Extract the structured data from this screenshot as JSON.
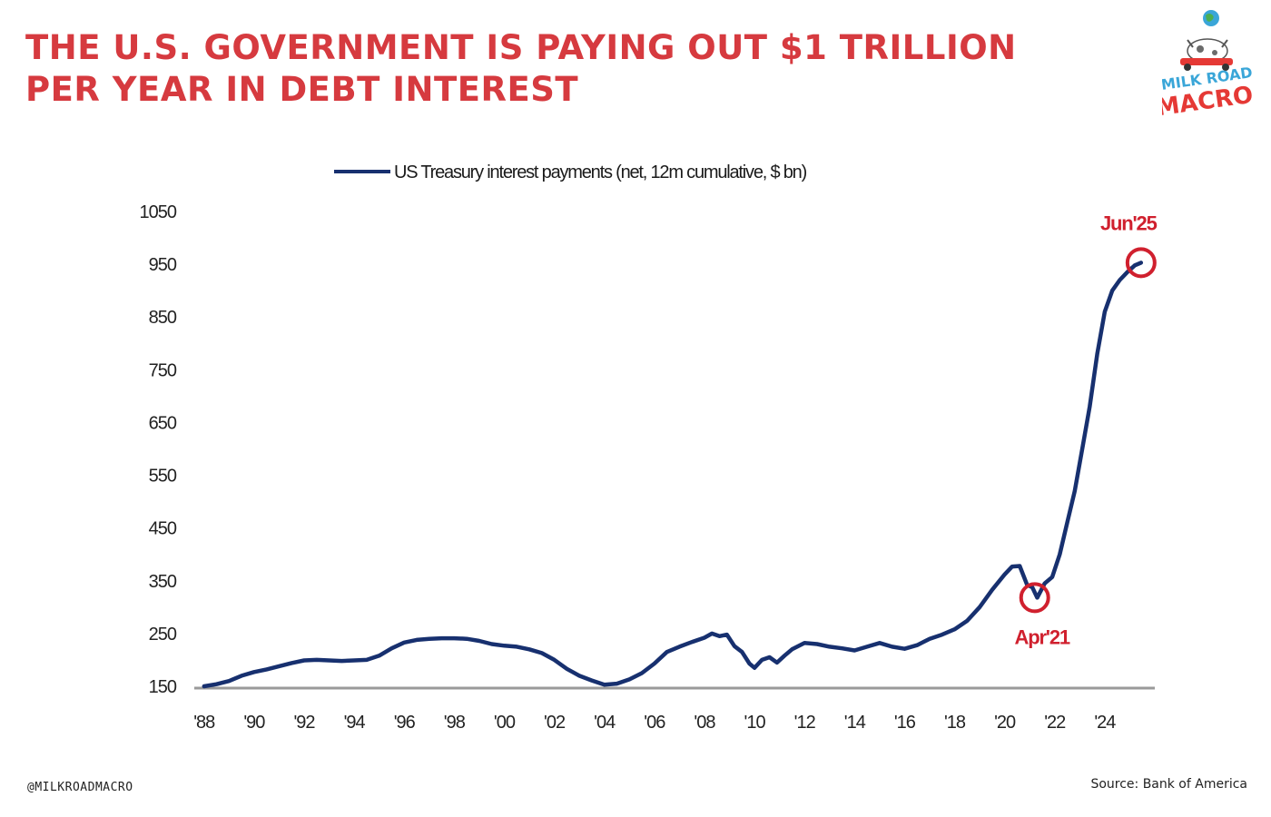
{
  "headline": "THE U.S. GOVERNMENT IS PAYING OUT $1 TRILLION PER YEAR IN DEBT INTEREST",
  "logo": {
    "line1": "MILK ROAD",
    "line2": "MACRO"
  },
  "footer": {
    "handle": "@MILKROADMACRO",
    "source": "Source: Bank of America"
  },
  "colors": {
    "headline": "#d63a3f",
    "series": "#17306f",
    "annotation": "#d0202e",
    "axis": "#9a9a9a"
  },
  "chart_data": {
    "type": "line",
    "title": "",
    "xlabel": "",
    "ylabel": "",
    "ylim": [
      150,
      1050
    ],
    "y_ticks": [
      1050,
      950,
      850,
      750,
      650,
      550,
      450,
      350,
      250,
      150
    ],
    "x_ticks": [
      {
        "value": 1988,
        "label": "'88"
      },
      {
        "value": 1990,
        "label": "'90"
      },
      {
        "value": 1992,
        "label": "'92"
      },
      {
        "value": 1994,
        "label": "'94"
      },
      {
        "value": 1996,
        "label": "'96"
      },
      {
        "value": 1998,
        "label": "'98"
      },
      {
        "value": 2000,
        "label": "'00"
      },
      {
        "value": 2002,
        "label": "'02"
      },
      {
        "value": 2004,
        "label": "'04"
      },
      {
        "value": 2006,
        "label": "'06"
      },
      {
        "value": 2008,
        "label": "'08"
      },
      {
        "value": 2010,
        "label": "'10"
      },
      {
        "value": 2012,
        "label": "'12"
      },
      {
        "value": 2014,
        "label": "'14"
      },
      {
        "value": 2016,
        "label": "'16"
      },
      {
        "value": 2018,
        "label": "'18"
      },
      {
        "value": 2020,
        "label": "'20"
      },
      {
        "value": 2022,
        "label": "'22"
      },
      {
        "value": 2024,
        "label": "'24"
      }
    ],
    "xlim": [
      1987.9,
      2026.0
    ],
    "grid": false,
    "legend": "top-center",
    "series": [
      {
        "name": "US Treasury interest payments (net, 12m cumulative, $ bn)",
        "x": [
          1988.0,
          1988.5,
          1989.0,
          1989.5,
          1990.0,
          1990.5,
          1991.0,
          1991.5,
          1992.0,
          1992.5,
          1993.0,
          1993.5,
          1994.0,
          1994.5,
          1995.0,
          1995.5,
          1996.0,
          1996.5,
          1997.0,
          1997.5,
          1998.0,
          1998.5,
          1999.0,
          1999.5,
          2000.0,
          2000.5,
          2001.0,
          2001.5,
          2002.0,
          2002.5,
          2003.0,
          2003.5,
          2004.0,
          2004.5,
          2005.0,
          2005.5,
          2006.0,
          2006.5,
          2007.0,
          2007.5,
          2008.0,
          2008.3,
          2008.6,
          2008.9,
          2009.2,
          2009.5,
          2009.8,
          2010.0,
          2010.3,
          2010.6,
          2010.9,
          2011.2,
          2011.5,
          2012.0,
          2012.5,
          2013.0,
          2013.5,
          2014.0,
          2014.5,
          2015.0,
          2015.5,
          2016.0,
          2016.5,
          2017.0,
          2017.5,
          2018.0,
          2018.5,
          2019.0,
          2019.5,
          2020.0,
          2020.3,
          2020.6,
          2020.9,
          2021.1,
          2021.3,
          2021.6,
          2021.9,
          2022.2,
          2022.5,
          2022.8,
          2023.1,
          2023.4,
          2023.7,
          2024.0,
          2024.3,
          2024.6,
          2024.9,
          2025.2,
          2025.45
        ],
        "y": [
          150,
          154,
          160,
          170,
          177,
          182,
          188,
          194,
          199,
          200,
          199,
          198,
          199,
          200,
          208,
          222,
          233,
          238,
          240,
          241,
          241,
          240,
          236,
          230,
          227,
          225,
          220,
          213,
          200,
          183,
          170,
          161,
          153,
          155,
          163,
          175,
          193,
          215,
          225,
          234,
          242,
          250,
          245,
          248,
          226,
          215,
          193,
          185,
          200,
          205,
          195,
          208,
          220,
          232,
          230,
          225,
          222,
          218,
          225,
          232,
          225,
          221,
          228,
          240,
          248,
          258,
          274,
          300,
          333,
          362,
          377,
          378,
          342,
          338,
          318,
          345,
          357,
          400,
          460,
          520,
          600,
          680,
          780,
          860,
          900,
          920,
          935,
          948,
          953
        ]
      }
    ],
    "annotations": [
      {
        "label": "Jun'25",
        "x": 2025.45,
        "y": 953,
        "position": "above"
      },
      {
        "label": "Apr'21",
        "x": 2021.2,
        "y": 318,
        "position": "below"
      }
    ]
  }
}
